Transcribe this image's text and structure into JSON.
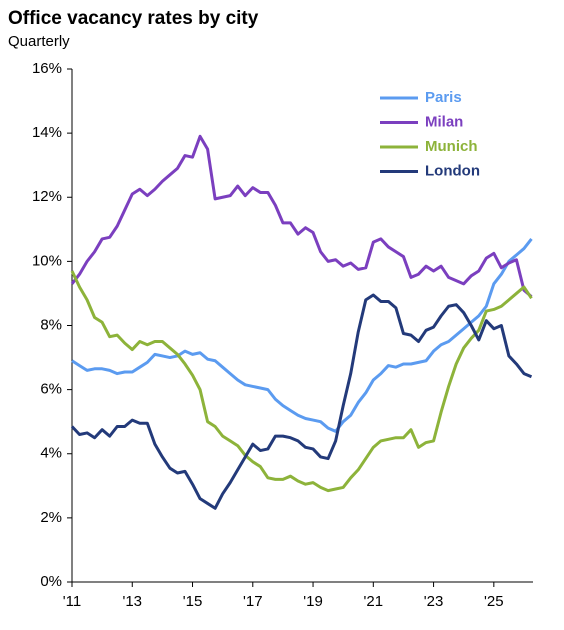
{
  "chart_data": {
    "type": "line",
    "title": "Office vacancy rates by city",
    "subtitle": "Quarterly",
    "x": [
      2011,
      2011.25,
      2011.5,
      2011.75,
      2012,
      2012.25,
      2012.5,
      2012.75,
      2013,
      2013.25,
      2013.5,
      2013.75,
      2014,
      2014.25,
      2014.5,
      2014.75,
      2015,
      2015.25,
      2015.5,
      2015.75,
      2016,
      2016.25,
      2016.5,
      2016.75,
      2017,
      2017.25,
      2017.5,
      2017.75,
      2018,
      2018.25,
      2018.5,
      2018.75,
      2019,
      2019.25,
      2019.5,
      2019.75,
      2020,
      2020.25,
      2020.5,
      2020.75,
      2021,
      2021.25,
      2021.5,
      2021.75,
      2022,
      2022.25,
      2022.5,
      2022.75,
      2023,
      2023.25,
      2023.5,
      2023.75,
      2024,
      2024.25,
      2024.5,
      2024.75,
      2025,
      2025.25,
      2025.5,
      2025.75,
      2026,
      2026.25
    ],
    "series": [
      {
        "name": "Paris",
        "color": "#5b9bf0",
        "values": [
          6.9,
          6.75,
          6.6,
          6.65,
          6.65,
          6.6,
          6.5,
          6.55,
          6.55,
          6.7,
          6.85,
          7.1,
          7.05,
          7.0,
          7.05,
          7.2,
          7.1,
          7.15,
          6.95,
          6.9,
          6.7,
          6.5,
          6.3,
          6.15,
          6.1,
          6.05,
          6.0,
          5.7,
          5.5,
          5.35,
          5.2,
          5.1,
          5.05,
          5.0,
          4.8,
          4.7,
          5.0,
          5.2,
          5.6,
          5.9,
          6.3,
          6.5,
          6.75,
          6.7,
          6.8,
          6.8,
          6.85,
          6.9,
          7.2,
          7.4,
          7.5,
          7.7,
          7.9,
          8.1,
          8.3,
          8.6,
          9.3,
          9.6,
          10.0,
          10.2,
          10.4,
          10.7
        ]
      },
      {
        "name": "Milan",
        "color": "#7b3fbf",
        "values": [
          9.3,
          9.6,
          10.0,
          10.3,
          10.7,
          10.75,
          11.1,
          11.6,
          12.1,
          12.25,
          12.05,
          12.25,
          12.5,
          12.7,
          12.9,
          13.3,
          13.25,
          13.9,
          13.5,
          11.95,
          12.0,
          12.05,
          12.35,
          12.05,
          12.3,
          12.15,
          12.15,
          11.75,
          11.2,
          11.2,
          10.85,
          11.05,
          10.9,
          10.3,
          10.0,
          10.05,
          9.85,
          9.95,
          9.75,
          9.8,
          10.6,
          10.7,
          10.45,
          10.3,
          10.15,
          9.5,
          9.6,
          9.85,
          9.7,
          9.85,
          9.5,
          9.4,
          9.3,
          9.55,
          9.7,
          10.1,
          10.25,
          9.8,
          9.95,
          10.05,
          9.1,
          8.9
        ]
      },
      {
        "name": "Munich",
        "color": "#8db33a",
        "values": [
          9.7,
          9.2,
          8.8,
          8.25,
          8.1,
          7.65,
          7.7,
          7.45,
          7.25,
          7.5,
          7.4,
          7.5,
          7.5,
          7.3,
          7.1,
          6.8,
          6.45,
          6.0,
          5.0,
          4.85,
          4.55,
          4.4,
          4.25,
          3.95,
          3.75,
          3.6,
          3.25,
          3.2,
          3.2,
          3.3,
          3.15,
          3.05,
          3.1,
          2.95,
          2.85,
          2.9,
          2.95,
          3.25,
          3.5,
          3.85,
          4.2,
          4.4,
          4.45,
          4.5,
          4.5,
          4.75,
          4.2,
          4.35,
          4.4,
          5.3,
          6.1,
          6.8,
          7.3,
          7.6,
          7.85,
          8.45,
          8.5,
          8.6,
          8.8,
          9.0,
          9.2,
          8.85
        ]
      },
      {
        "name": "London",
        "color": "#233a7a",
        "values": [
          4.85,
          4.6,
          4.65,
          4.5,
          4.75,
          4.55,
          4.85,
          4.85,
          5.05,
          4.95,
          4.95,
          4.3,
          3.9,
          3.55,
          3.4,
          3.45,
          3.05,
          2.6,
          2.45,
          2.3,
          2.75,
          3.1,
          3.5,
          3.9,
          4.3,
          4.1,
          4.15,
          4.55,
          4.55,
          4.5,
          4.4,
          4.2,
          4.15,
          3.9,
          3.85,
          4.4,
          5.5,
          6.5,
          7.8,
          8.8,
          8.95,
          8.75,
          8.75,
          8.55,
          7.75,
          7.7,
          7.5,
          7.85,
          7.95,
          8.3,
          8.6,
          8.65,
          8.4,
          8.0,
          7.55,
          8.15,
          7.9,
          8.0,
          7.05,
          6.8,
          6.5,
          6.4
        ]
      }
    ],
    "xlim": [
      2011,
      2026.3
    ],
    "xticks": [
      {
        "value": 2011,
        "label": "'11"
      },
      {
        "value": 2013,
        "label": "'13"
      },
      {
        "value": 2015,
        "label": "'15"
      },
      {
        "value": 2017,
        "label": "'17"
      },
      {
        "value": 2019,
        "label": "'19"
      },
      {
        "value": 2021,
        "label": "'21"
      },
      {
        "value": 2023,
        "label": "'23"
      },
      {
        "value": 2025,
        "label": "'25"
      }
    ],
    "ylim": [
      0,
      16
    ],
    "yticks": [
      {
        "value": 0,
        "label": "0%"
      },
      {
        "value": 2,
        "label": "2%"
      },
      {
        "value": 4,
        "label": "4%"
      },
      {
        "value": 6,
        "label": "6%"
      },
      {
        "value": 8,
        "label": "8%"
      },
      {
        "value": 10,
        "label": "10%"
      },
      {
        "value": 12,
        "label": "12%"
      },
      {
        "value": 14,
        "label": "14%"
      },
      {
        "value": 16,
        "label": "16%"
      }
    ],
    "legend": "upper right"
  }
}
